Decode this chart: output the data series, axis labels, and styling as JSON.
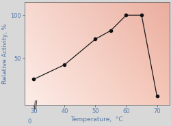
{
  "x": [
    30,
    40,
    50,
    55,
    60,
    65,
    70
  ],
  "y": [
    25,
    42,
    72,
    82,
    100,
    100,
    5
  ],
  "xlim": [
    27,
    74
  ],
  "ylim": [
    -5,
    115
  ],
  "xticks": [
    30,
    40,
    50,
    60,
    70
  ],
  "yticks": [
    50,
    100
  ],
  "xlabel": "Temperature,  °C",
  "ylabel": "Relative Activity, %",
  "line_color": "#1a1a1a",
  "marker_color": "#111111",
  "axis_fontsize": 6.5,
  "tick_fontsize": 6.0,
  "axis_label_color": "#5577aa",
  "tick_label_color": "#5577aa",
  "grad_topleft": [
    0.97,
    0.85,
    0.82
  ],
  "grad_topright": [
    0.92,
    0.68,
    0.62
  ],
  "grad_bottomleft": [
    0.99,
    0.93,
    0.91
  ],
  "grad_bottomright": [
    0.96,
    0.78,
    0.72
  ]
}
